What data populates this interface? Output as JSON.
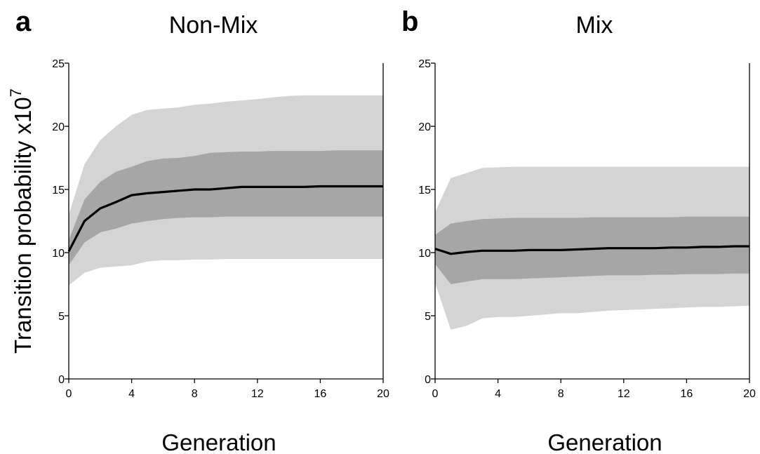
{
  "figure": {
    "ylabel": "Transition probability x10",
    "ylabel_superscript": "7"
  },
  "chart_data": [
    {
      "type": "area",
      "panel_label": "a",
      "title": "Non-Mix",
      "xlabel": "Generation",
      "ylabel": "Transition probability x10^7",
      "xlim": [
        0,
        20
      ],
      "ylim": [
        0,
        25
      ],
      "x_ticks": [
        0,
        4,
        8,
        12,
        16,
        20
      ],
      "y_ticks": [
        0,
        5,
        10,
        15,
        20,
        25
      ],
      "grid": false,
      "x": [
        0,
        1,
        2,
        3,
        4,
        5,
        6,
        7,
        8,
        9,
        10,
        11,
        12,
        13,
        14,
        15,
        16,
        17,
        18,
        19,
        20
      ],
      "series": [
        {
          "role": "outer_band",
          "color": "#d4d4d4",
          "lower": [
            7.4,
            8.4,
            8.8,
            8.9,
            9.0,
            9.3,
            9.4,
            9.4,
            9.45,
            9.45,
            9.5,
            9.5,
            9.5,
            9.5,
            9.5,
            9.5,
            9.5,
            9.5,
            9.5,
            9.5,
            9.5
          ],
          "upper": [
            13.0,
            17.0,
            18.9,
            20.0,
            20.9,
            21.3,
            21.4,
            21.5,
            21.7,
            21.8,
            21.95,
            22.05,
            22.15,
            22.3,
            22.4,
            22.45,
            22.45,
            22.45,
            22.45,
            22.45,
            22.45
          ]
        },
        {
          "role": "inner_band",
          "color": "#a6a6a6",
          "lower": [
            9.0,
            10.8,
            11.6,
            11.9,
            12.3,
            12.5,
            12.65,
            12.75,
            12.8,
            12.8,
            12.85,
            12.85,
            12.85,
            12.85,
            12.85,
            12.85,
            12.85,
            12.85,
            12.85,
            12.85,
            12.85
          ],
          "upper": [
            11.0,
            14.2,
            15.6,
            16.4,
            16.8,
            17.25,
            17.45,
            17.5,
            17.65,
            17.9,
            17.95,
            18.0,
            18.0,
            18.05,
            18.05,
            18.05,
            18.05,
            18.1,
            18.1,
            18.1,
            18.1
          ]
        },
        {
          "role": "median",
          "color": "#000000",
          "values": [
            10.1,
            12.5,
            13.5,
            14.0,
            14.55,
            14.7,
            14.8,
            14.9,
            15.0,
            15.0,
            15.1,
            15.2,
            15.2,
            15.2,
            15.2,
            15.2,
            15.25,
            15.25,
            15.25,
            15.25,
            15.25
          ]
        }
      ]
    },
    {
      "type": "area",
      "panel_label": "b",
      "title": "Mix",
      "xlabel": "Generation",
      "ylabel": "",
      "xlim": [
        0,
        20
      ],
      "ylim": [
        0,
        25
      ],
      "x_ticks": [
        0,
        4,
        8,
        12,
        16,
        20
      ],
      "y_ticks": [
        0,
        5,
        10,
        15,
        20,
        25
      ],
      "grid": false,
      "x": [
        0,
        1,
        2,
        3,
        4,
        5,
        6,
        7,
        8,
        9,
        10,
        11,
        12,
        13,
        14,
        15,
        16,
        17,
        18,
        19,
        20
      ],
      "series": [
        {
          "role": "outer_band",
          "color": "#d4d4d4",
          "lower": [
            7.6,
            3.9,
            4.2,
            4.8,
            4.9,
            4.9,
            5.0,
            5.1,
            5.2,
            5.2,
            5.3,
            5.4,
            5.45,
            5.5,
            5.55,
            5.6,
            5.65,
            5.7,
            5.7,
            5.75,
            5.8
          ],
          "upper": [
            13.2,
            15.9,
            16.3,
            16.7,
            16.75,
            16.8,
            16.8,
            16.8,
            16.8,
            16.8,
            16.8,
            16.8,
            16.8,
            16.8,
            16.8,
            16.8,
            16.8,
            16.8,
            16.8,
            16.8,
            16.8
          ]
        },
        {
          "role": "inner_band",
          "color": "#a6a6a6",
          "lower": [
            9.1,
            7.5,
            7.7,
            7.9,
            7.9,
            7.9,
            7.95,
            8.0,
            8.05,
            8.1,
            8.15,
            8.2,
            8.2,
            8.2,
            8.25,
            8.25,
            8.3,
            8.3,
            8.3,
            8.35,
            8.35
          ],
          "upper": [
            11.4,
            12.3,
            12.5,
            12.65,
            12.7,
            12.75,
            12.75,
            12.75,
            12.75,
            12.75,
            12.8,
            12.8,
            12.8,
            12.8,
            12.8,
            12.8,
            12.85,
            12.85,
            12.85,
            12.85,
            12.85
          ]
        },
        {
          "role": "median",
          "color": "#000000",
          "values": [
            10.3,
            9.9,
            10.05,
            10.15,
            10.15,
            10.15,
            10.2,
            10.2,
            10.2,
            10.25,
            10.3,
            10.35,
            10.35,
            10.35,
            10.35,
            10.4,
            10.4,
            10.45,
            10.45,
            10.5,
            10.5
          ]
        }
      ]
    }
  ]
}
